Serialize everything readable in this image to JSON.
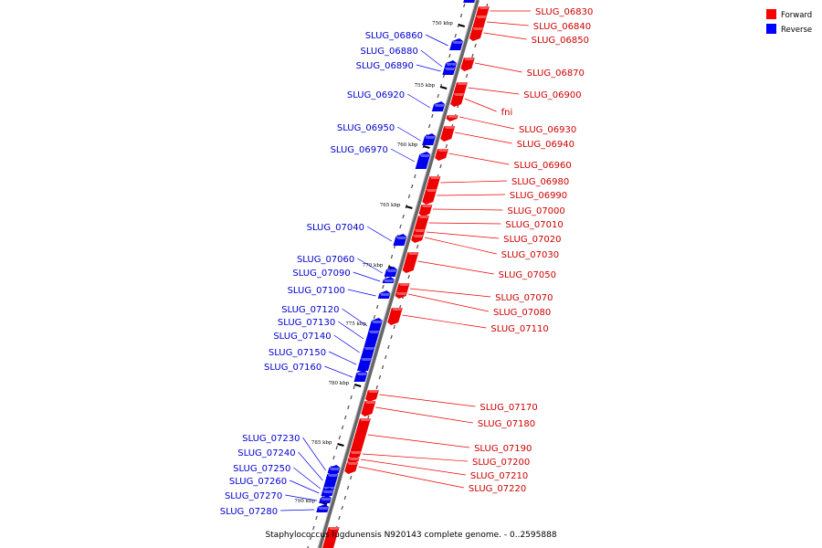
{
  "legend": [
    {
      "label": "Forward",
      "color": "#ff0000"
    },
    {
      "label": "Reverse",
      "color": "#0000ff"
    }
  ],
  "caption": "Staphylococcus lugdunensis N920143 complete genome. - 0..2595888",
  "colors": {
    "forward": "#ee0000",
    "reverse": "#0000ee",
    "backbone": "#888888"
  },
  "ticks": [
    "750 kbp",
    "755 kbp",
    "760 kbp",
    "765 kbp",
    "770 kbp",
    "775 kbp",
    "780 kbp",
    "785 kbp",
    "790 kbp"
  ],
  "forward_genes": [
    "SLUG_06830",
    "SLUG_06840",
    "SLUG_06850",
    "SLUG_06870",
    "SLUG_06900",
    "fni",
    "SLUG_06930",
    "SLUG_06940",
    "SLUG_06960",
    "SLUG_06980",
    "SLUG_06990",
    "SLUG_07000",
    "SLUG_07010",
    "SLUG_07020",
    "SLUG_07030",
    "SLUG_07050",
    "SLUG_07070",
    "SLUG_07080",
    "SLUG_07110",
    "SLUG_07170",
    "SLUG_07180",
    "SLUG_07190",
    "SLUG_07200",
    "SLUG_07210",
    "SLUG_07220"
  ],
  "reverse_genes": [
    "SLUG_06860",
    "SLUG_06880",
    "SLUG_06890",
    "SLUG_06920",
    "SLUG_06950",
    "SLUG_06970",
    "SLUG_07040",
    "SLUG_07060",
    "SLUG_07090",
    "SLUG_07100",
    "SLUG_07120",
    "SLUG_07130",
    "SLUG_07140",
    "SLUG_07150",
    "SLUG_07160",
    "SLUG_07230",
    "SLUG_07240",
    "SLUG_07250",
    "SLUG_07260",
    "SLUG_07270",
    "SLUG_07280"
  ]
}
